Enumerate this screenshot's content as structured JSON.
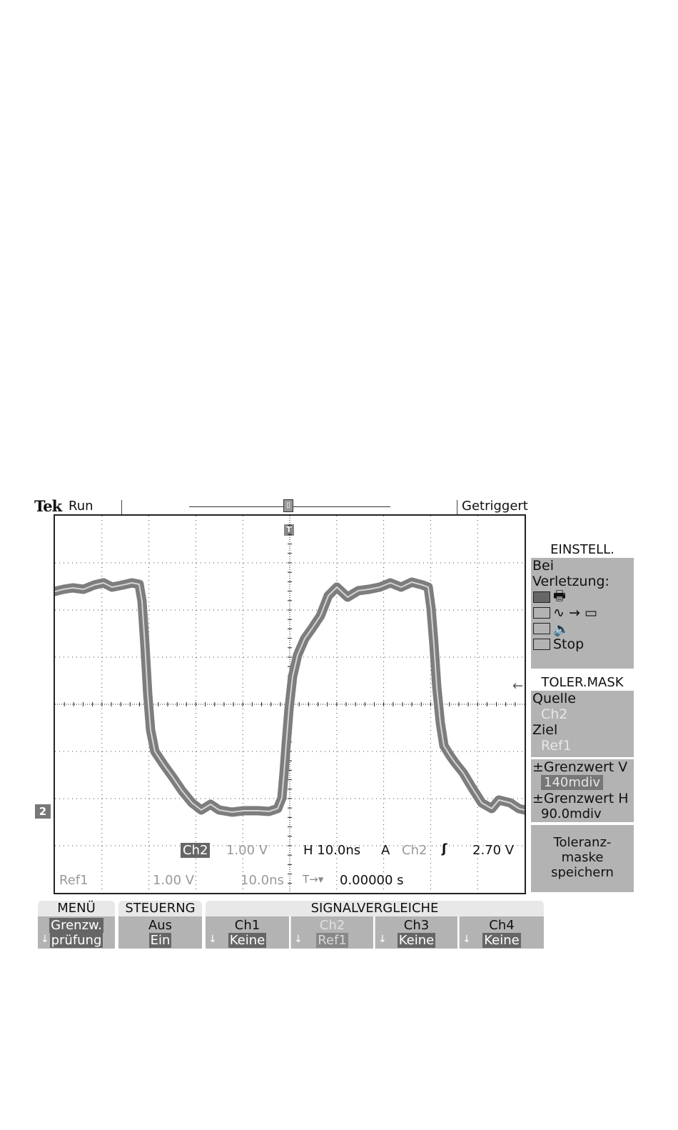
{
  "header": {
    "brand": "Tek",
    "run_state": "Run",
    "trigger_state": "Getriggert",
    "record_marker": "▯",
    "trigger_position_marker": "T"
  },
  "screen": {
    "ch2_ground_marker": "2",
    "readout_row1": {
      "channel": "Ch2",
      "volts_per_div": "1.00 V",
      "timebase": "H 10.0ns",
      "trigger_mode": "A",
      "trigger_source": "Ch2",
      "trigger_slope": "ʃ",
      "trigger_level": "2.70 V"
    },
    "readout_row2": {
      "ref": "Ref1",
      "ref_volts": "1.00 V",
      "ref_time": "10.0ns",
      "trigger_offset_icon": "T→▾",
      "trigger_offset": "0.00000 s"
    }
  },
  "side_menu": {
    "setup": {
      "title": "EINSTELL.",
      "label_line1": "Bei",
      "label_line2": "Verletzung:",
      "options": [
        {
          "icon": "printer-icon",
          "glyph": "🖶",
          "checked": true
        },
        {
          "icon": "waveform-to-disk-icon",
          "glyph": "∿ → ▭",
          "checked": false
        },
        {
          "icon": "speaker-icon",
          "glyph": "🔈",
          "checked": false
        },
        {
          "icon": "",
          "glyph": "Stop",
          "checked": false
        }
      ]
    },
    "tolerance_mask": {
      "title": "TOLER.MASK",
      "source_label": "Quelle",
      "source_value": "Ch2",
      "target_label": "Ziel",
      "target_value": "Ref1"
    },
    "limit_v": {
      "label": "±Grenzwert V",
      "value": "140mdiv"
    },
    "limit_h": {
      "label": "±Grenzwert H",
      "value": "90.0mdiv"
    },
    "save_mask": {
      "line1": "Toleranz-",
      "line2": "maske",
      "line3": "speichern"
    }
  },
  "bottom_menu": {
    "menu": {
      "tab": "MENÜ",
      "line1": "Grenzw.",
      "line2": "prüfung"
    },
    "control": {
      "tab": "STEUERNG",
      "line1": "Aus",
      "line2": "Ein"
    },
    "compare": {
      "tab": "SIGNALVERGLEICHE",
      "channels": [
        {
          "name": "Ch1",
          "value": "Keine"
        },
        {
          "name": "Ch2",
          "value": "Ref1"
        },
        {
          "name": "Ch3",
          "value": "Keine"
        },
        {
          "name": "Ch4",
          "value": "Keine"
        }
      ]
    }
  },
  "colors": {
    "trace": "#7d7d7d",
    "trace_center": "#d4d4d4",
    "menu_bg": "#b3b3b3",
    "highlight": "#666666"
  }
}
